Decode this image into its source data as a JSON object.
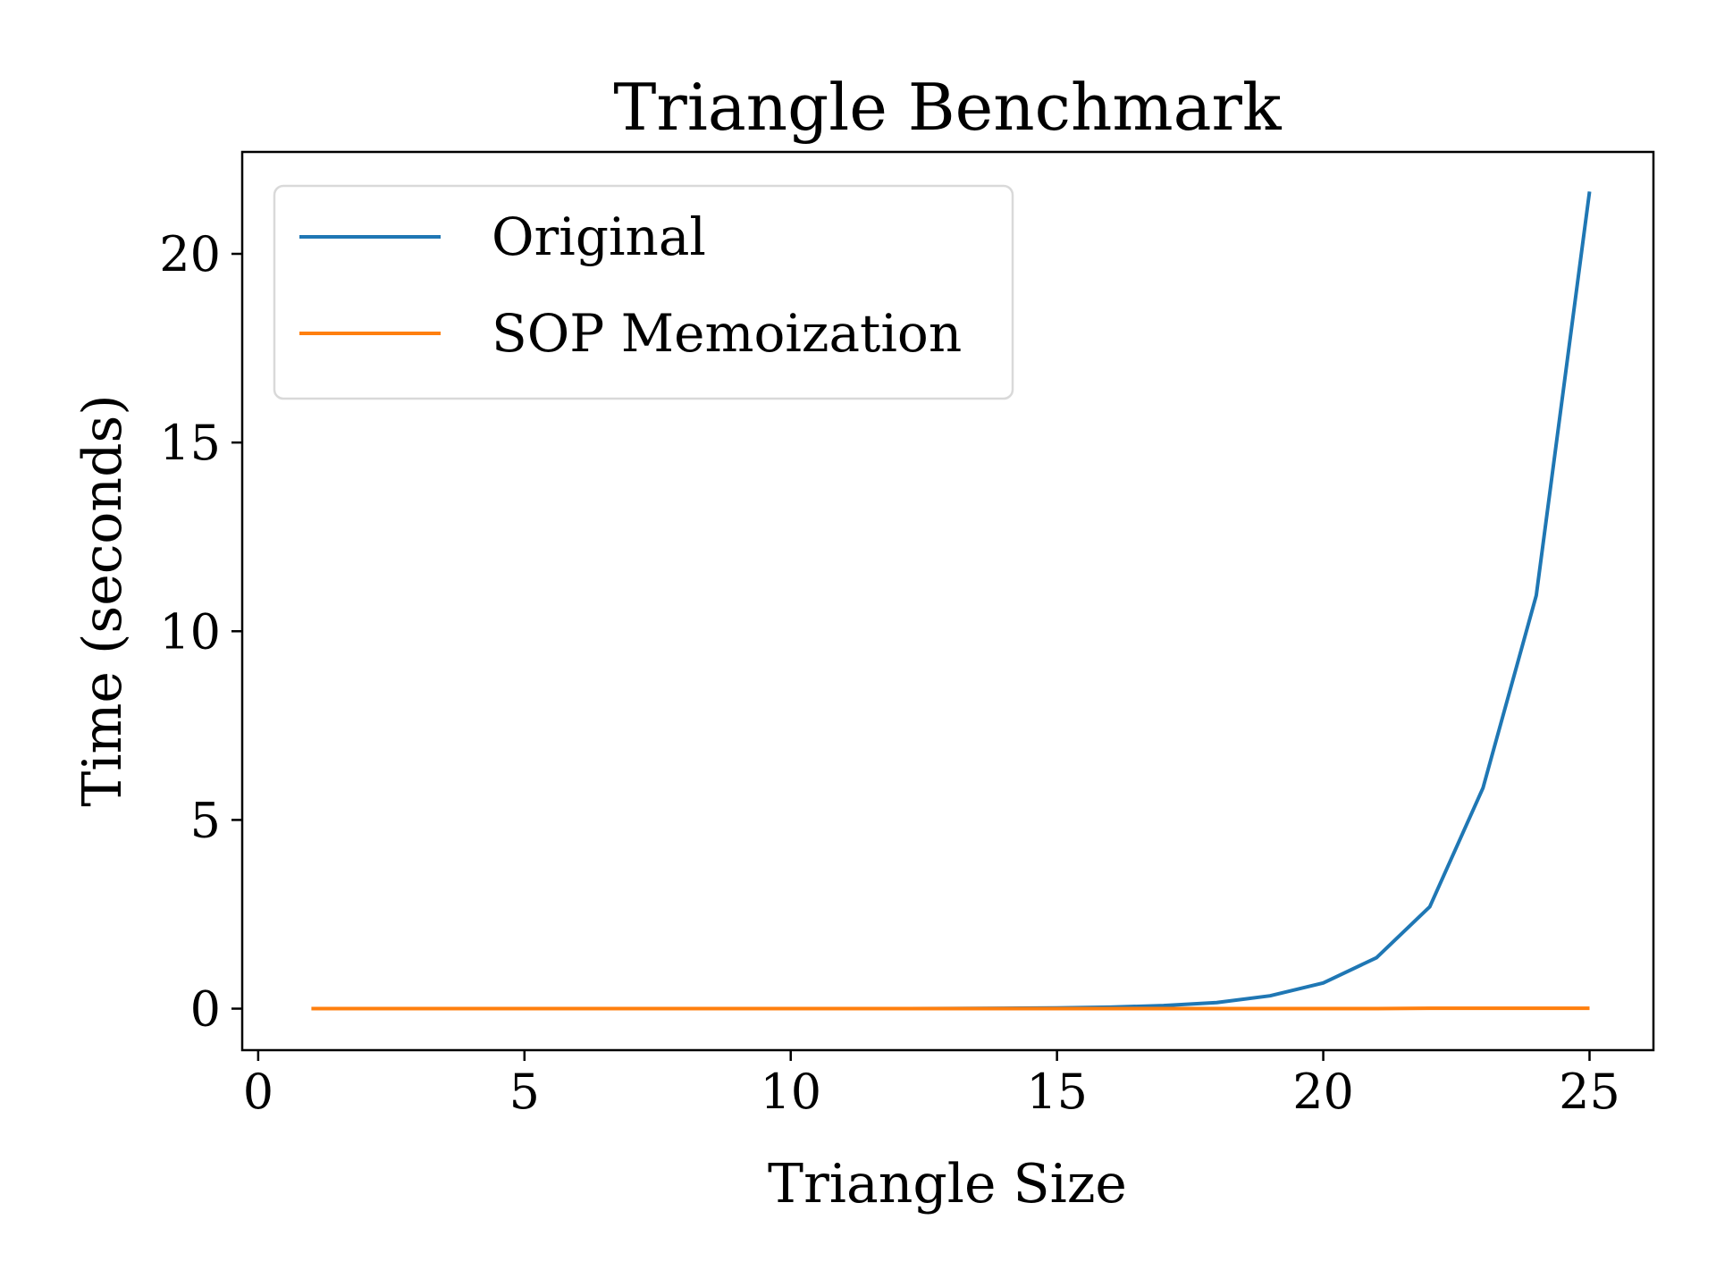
{
  "chart_data": {
    "type": "line",
    "title": "Triangle Benchmark",
    "xlabel": "Triangle Size",
    "ylabel": "Time (seconds)",
    "xlim": [
      -0.3,
      26.2
    ],
    "ylim": [
      -1.1,
      22.7
    ],
    "x_ticks": [
      0,
      5,
      10,
      15,
      20,
      25
    ],
    "y_ticks": [
      0,
      5,
      10,
      15,
      20
    ],
    "grid": false,
    "legend_position": "upper-left",
    "x": [
      1,
      2,
      3,
      4,
      5,
      6,
      7,
      8,
      9,
      10,
      11,
      12,
      13,
      14,
      15,
      16,
      17,
      18,
      19,
      20,
      21,
      22,
      23,
      24,
      25
    ],
    "series": [
      {
        "name": "Original",
        "color": "#1f77b4",
        "values": [
          0.0,
          0.0,
          0.0,
          0.0,
          0.0,
          0.0,
          0.0,
          0.0,
          0.0,
          0.0,
          0.0,
          0.0,
          0.005,
          0.01,
          0.02,
          0.04,
          0.08,
          0.16,
          0.34,
          0.68,
          1.35,
          2.7,
          5.85,
          10.95,
          21.65
        ]
      },
      {
        "name": "SOP Memoization",
        "color": "#ff7f0e",
        "values": [
          0.0,
          0.0,
          0.0,
          0.0,
          0.0,
          0.0,
          0.0,
          0.0,
          0.0,
          0.0,
          0.0,
          0.0,
          0.0,
          0.0,
          0.0,
          0.0,
          0.0,
          0.0,
          0.0,
          0.0,
          0.0,
          0.01,
          0.01,
          0.01,
          0.01
        ]
      }
    ]
  }
}
